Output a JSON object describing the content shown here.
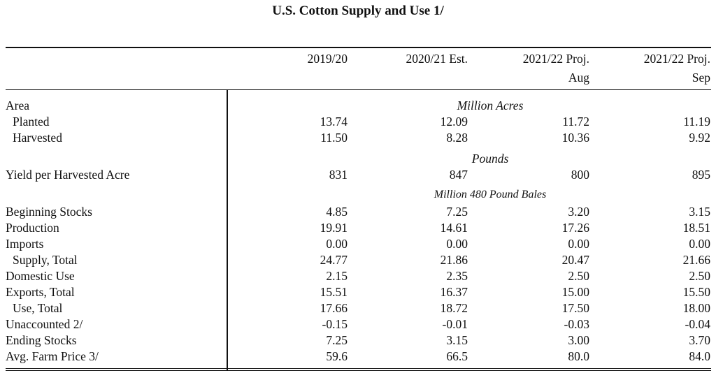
{
  "title": "U.S. Cotton Supply and Use  1/",
  "columns": [
    {
      "line1": "2019/20",
      "line2": ""
    },
    {
      "line1": "2020/21 Est.",
      "line2": ""
    },
    {
      "line1": "2021/22 Proj.",
      "line2": "Aug"
    },
    {
      "line1": "2021/22 Proj.",
      "line2": "Sep"
    }
  ],
  "rows": [
    {
      "type": "label",
      "label": "Area",
      "unit": "Million Acres"
    },
    {
      "type": "data",
      "label": "Planted",
      "indent": true,
      "values": [
        "13.74",
        "12.09",
        "11.72",
        "11.19"
      ]
    },
    {
      "type": "data",
      "label": "Harvested",
      "indent": true,
      "values": [
        "11.50",
        "8.28",
        "10.36",
        "9.92"
      ]
    },
    {
      "type": "unit",
      "unit": "Pounds"
    },
    {
      "type": "data",
      "label": "Yield per Harvested Acre",
      "values": [
        "831",
        "847",
        "800",
        "895"
      ]
    },
    {
      "type": "unit",
      "unit": "Million 480 Pound Bales",
      "small": true
    },
    {
      "type": "data",
      "label": "Beginning Stocks",
      "values": [
        "4.85",
        "7.25",
        "3.20",
        "3.15"
      ]
    },
    {
      "type": "data",
      "label": "Production",
      "values": [
        "19.91",
        "14.61",
        "17.26",
        "18.51"
      ]
    },
    {
      "type": "data",
      "label": "Imports",
      "values": [
        "0.00",
        "0.00",
        "0.00",
        "0.00"
      ]
    },
    {
      "type": "data",
      "label": "Supply, Total",
      "indent": true,
      "values": [
        "24.77",
        "21.86",
        "20.47",
        "21.66"
      ]
    },
    {
      "type": "data",
      "label": "Domestic Use",
      "values": [
        "2.15",
        "2.35",
        "2.50",
        "2.50"
      ]
    },
    {
      "type": "data",
      "label": "Exports, Total",
      "values": [
        "15.51",
        "16.37",
        "15.00",
        "15.50"
      ]
    },
    {
      "type": "data",
      "label": "Use, Total",
      "indent": true,
      "values": [
        "17.66",
        "18.72",
        "17.50",
        "18.00"
      ]
    },
    {
      "type": "data",
      "label": "Unaccounted 2/",
      "values": [
        "-0.15",
        "-0.01",
        "-0.03",
        "-0.04"
      ]
    },
    {
      "type": "data",
      "label": "Ending Stocks",
      "values": [
        "7.25",
        "3.15",
        "3.00",
        "3.70"
      ]
    },
    {
      "type": "data",
      "label": "Avg. Farm Price 3/",
      "values": [
        "59.6",
        "66.5",
        "80.0",
        "84.0"
      ]
    }
  ]
}
